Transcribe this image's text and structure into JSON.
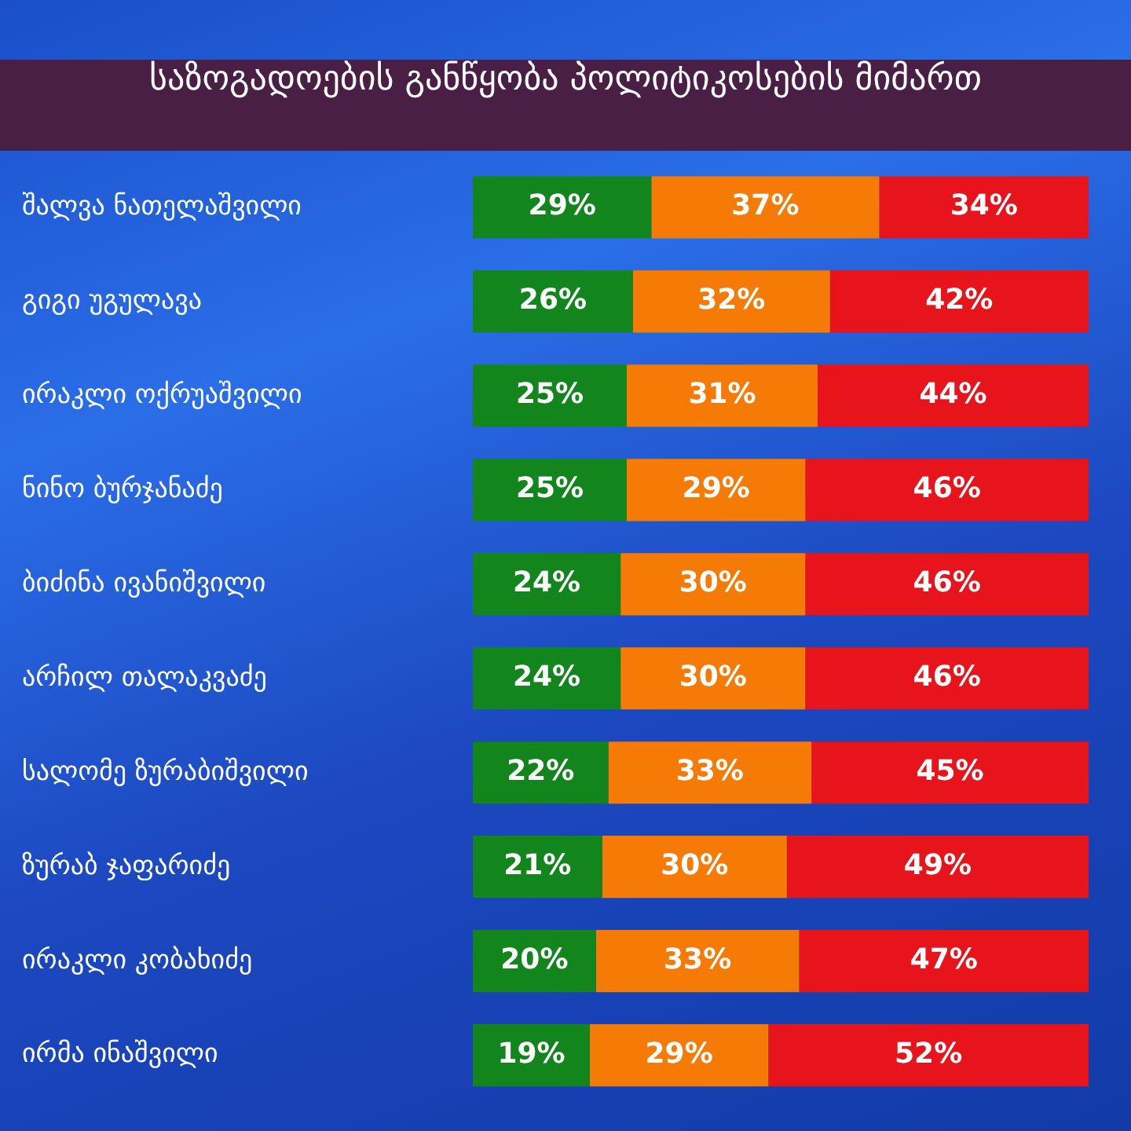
{
  "chart_data": {
    "type": "bar",
    "orientation": "horizontal",
    "stacked": true,
    "title": "საზოგადოების განწყობა პოლიტიკოსების მიმართ",
    "categories": [
      "შალვა ნათელაშვილი",
      "გიგი უგულავა",
      "ირაკლი ოქრუაშვილი",
      "ნინო ბურჯანაძე",
      "ბიძინა ივანიშვილი",
      "არჩილ თალაკვაძე",
      "სალომე ზურაბიშვილი",
      "ზურაბ ჯაფარიძე",
      "ირაკლი კობახიძე",
      "ირმა ინაშვილი"
    ],
    "series": [
      {
        "color": "#12861c",
        "values": [
          29,
          26,
          25,
          25,
          24,
          24,
          22,
          21,
          20,
          19
        ],
        "value_labels": [
          "29%",
          "26%",
          "25%",
          "25%",
          "24%",
          "24%",
          "22%",
          "21%",
          "20%",
          "19%"
        ]
      },
      {
        "color": "#f57a06",
        "values": [
          37,
          32,
          31,
          29,
          30,
          30,
          33,
          30,
          33,
          29
        ],
        "value_labels": [
          "37%",
          "32%",
          "31%",
          "29%",
          "30%",
          "30%",
          "33%",
          "30%",
          "33%",
          "29%"
        ]
      },
      {
        "color": "#e8141c",
        "values": [
          34,
          42,
          44,
          46,
          46,
          46,
          45,
          49,
          47,
          52
        ],
        "value_labels": [
          "34%",
          "42%",
          "44%",
          "46%",
          "46%",
          "46%",
          "45%",
          "49%",
          "47%",
          "52%"
        ]
      }
    ],
    "legend": false
  }
}
